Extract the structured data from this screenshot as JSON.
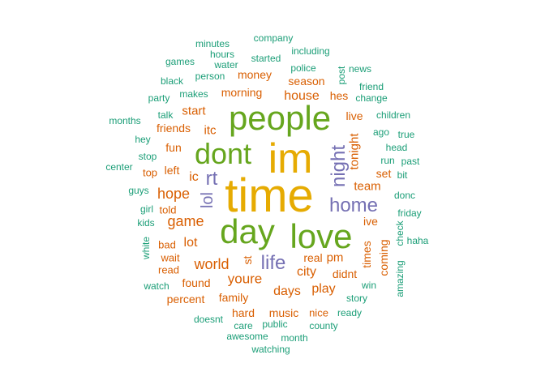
{
  "palette": {
    "gold": "#E6AB02",
    "green": "#66A61E",
    "orange": "#D95F02",
    "purple": "#7570B3",
    "teal": "#1B9E77"
  },
  "words": [
    {
      "text": "time",
      "color": "gold",
      "weight": 10
    },
    {
      "text": "im",
      "color": "gold",
      "weight": 9
    },
    {
      "text": "people",
      "color": "green",
      "weight": 7
    },
    {
      "text": "love",
      "color": "green",
      "weight": 7
    },
    {
      "text": "day",
      "color": "green",
      "weight": 7
    },
    {
      "text": "dont",
      "color": "green",
      "weight": 6
    },
    {
      "text": "home",
      "color": "purple",
      "weight": 4
    },
    {
      "text": "life",
      "color": "purple",
      "weight": 4
    },
    {
      "text": "night",
      "color": "purple",
      "weight": 4
    },
    {
      "text": "rt",
      "color": "purple",
      "weight": 4
    },
    {
      "text": "lol",
      "color": "purple",
      "weight": 3
    },
    {
      "text": "game",
      "color": "orange",
      "weight": 3
    },
    {
      "text": "hope",
      "color": "orange",
      "weight": 3
    },
    {
      "text": "world",
      "color": "orange",
      "weight": 3
    },
    {
      "text": "youre",
      "color": "orange",
      "weight": 3
    },
    {
      "text": "days",
      "color": "orange",
      "weight": 2
    },
    {
      "text": "city",
      "color": "orange",
      "weight": 2
    },
    {
      "text": "play",
      "color": "orange",
      "weight": 2
    },
    {
      "text": "house",
      "color": "orange",
      "weight": 2
    },
    {
      "text": "tonight",
      "color": "orange",
      "weight": 2
    },
    {
      "text": "team",
      "color": "orange",
      "weight": 2
    },
    {
      "text": "lot",
      "color": "orange",
      "weight": 2
    },
    {
      "text": "ic",
      "color": "orange",
      "weight": 2
    },
    {
      "text": "itc",
      "color": "orange",
      "weight": 2
    },
    {
      "text": "money",
      "color": "orange",
      "weight": 2
    },
    {
      "text": "morning",
      "color": "orange",
      "weight": 2
    },
    {
      "text": "season",
      "color": "orange",
      "weight": 2
    },
    {
      "text": "start",
      "color": "orange",
      "weight": 2
    },
    {
      "text": "friends",
      "color": "orange",
      "weight": 2
    },
    {
      "text": "fun",
      "color": "orange",
      "weight": 2
    },
    {
      "text": "left",
      "color": "orange",
      "weight": 2
    },
    {
      "text": "hes",
      "color": "orange",
      "weight": 2
    },
    {
      "text": "live",
      "color": "orange",
      "weight": 2
    },
    {
      "text": "set",
      "color": "orange",
      "weight": 2
    },
    {
      "text": "ive",
      "color": "orange",
      "weight": 2
    },
    {
      "text": "times",
      "color": "orange",
      "weight": 2
    },
    {
      "text": "coming",
      "color": "orange",
      "weight": 2
    },
    {
      "text": "real",
      "color": "orange",
      "weight": 2
    },
    {
      "text": "pm",
      "color": "orange",
      "weight": 2
    },
    {
      "text": "didnt",
      "color": "orange",
      "weight": 2
    },
    {
      "text": "found",
      "color": "orange",
      "weight": 2
    },
    {
      "text": "family",
      "color": "orange",
      "weight": 2
    },
    {
      "text": "percent",
      "color": "orange",
      "weight": 2
    },
    {
      "text": "hard",
      "color": "orange",
      "weight": 2
    },
    {
      "text": "music",
      "color": "orange",
      "weight": 2
    },
    {
      "text": "st",
      "color": "orange",
      "weight": 2
    },
    {
      "text": "wait",
      "color": "orange",
      "weight": 1
    },
    {
      "text": "bad",
      "color": "orange",
      "weight": 1
    },
    {
      "text": "read",
      "color": "orange",
      "weight": 1
    },
    {
      "text": "told",
      "color": "orange",
      "weight": 1
    },
    {
      "text": "top",
      "color": "orange",
      "weight": 1
    },
    {
      "text": "nice",
      "color": "orange",
      "weight": 1
    },
    {
      "text": "minutes",
      "color": "teal",
      "weight": 1
    },
    {
      "text": "company",
      "color": "teal",
      "weight": 1
    },
    {
      "text": "hours",
      "color": "teal",
      "weight": 1
    },
    {
      "text": "games",
      "color": "teal",
      "weight": 1
    },
    {
      "text": "water",
      "color": "teal",
      "weight": 1
    },
    {
      "text": "started",
      "color": "teal",
      "weight": 1
    },
    {
      "text": "including",
      "color": "teal",
      "weight": 1
    },
    {
      "text": "police",
      "color": "teal",
      "weight": 1
    },
    {
      "text": "news",
      "color": "teal",
      "weight": 1
    },
    {
      "text": "post",
      "color": "teal",
      "weight": 1
    },
    {
      "text": "black",
      "color": "teal",
      "weight": 1
    },
    {
      "text": "person",
      "color": "teal",
      "weight": 1
    },
    {
      "text": "party",
      "color": "teal",
      "weight": 1
    },
    {
      "text": "makes",
      "color": "teal",
      "weight": 1
    },
    {
      "text": "friend",
      "color": "teal",
      "weight": 1
    },
    {
      "text": "change",
      "color": "teal",
      "weight": 1
    },
    {
      "text": "talk",
      "color": "teal",
      "weight": 1
    },
    {
      "text": "months",
      "color": "teal",
      "weight": 1
    },
    {
      "text": "children",
      "color": "teal",
      "weight": 1
    },
    {
      "text": "ago",
      "color": "teal",
      "weight": 1
    },
    {
      "text": "true",
      "color": "teal",
      "weight": 1
    },
    {
      "text": "hey",
      "color": "teal",
      "weight": 1
    },
    {
      "text": "head",
      "color": "teal",
      "weight": 1
    },
    {
      "text": "stop",
      "color": "teal",
      "weight": 1
    },
    {
      "text": "run",
      "color": "teal",
      "weight": 1
    },
    {
      "text": "past",
      "color": "teal",
      "weight": 1
    },
    {
      "text": "center",
      "color": "teal",
      "weight": 1
    },
    {
      "text": "bit",
      "color": "teal",
      "weight": 1
    },
    {
      "text": "guys",
      "color": "teal",
      "weight": 1
    },
    {
      "text": "donc",
      "color": "teal",
      "weight": 1
    },
    {
      "text": "girl",
      "color": "teal",
      "weight": 1
    },
    {
      "text": "kids",
      "color": "teal",
      "weight": 1
    },
    {
      "text": "friday",
      "color": "teal",
      "weight": 1
    },
    {
      "text": "white",
      "color": "teal",
      "weight": 1
    },
    {
      "text": "check",
      "color": "teal",
      "weight": 1
    },
    {
      "text": "haha",
      "color": "teal",
      "weight": 1
    },
    {
      "text": "amazing",
      "color": "teal",
      "weight": 1
    },
    {
      "text": "watch",
      "color": "teal",
      "weight": 1
    },
    {
      "text": "win",
      "color": "teal",
      "weight": 1
    },
    {
      "text": "story",
      "color": "teal",
      "weight": 1
    },
    {
      "text": "ready",
      "color": "teal",
      "weight": 1
    },
    {
      "text": "doesnt",
      "color": "teal",
      "weight": 1
    },
    {
      "text": "care",
      "color": "teal",
      "weight": 1
    },
    {
      "text": "public",
      "color": "teal",
      "weight": 1
    },
    {
      "text": "county",
      "color": "teal",
      "weight": 1
    },
    {
      "text": "awesome",
      "color": "teal",
      "weight": 1
    },
    {
      "text": "month",
      "color": "teal",
      "weight": 1
    },
    {
      "text": "watching",
      "color": "teal",
      "weight": 1
    }
  ]
}
